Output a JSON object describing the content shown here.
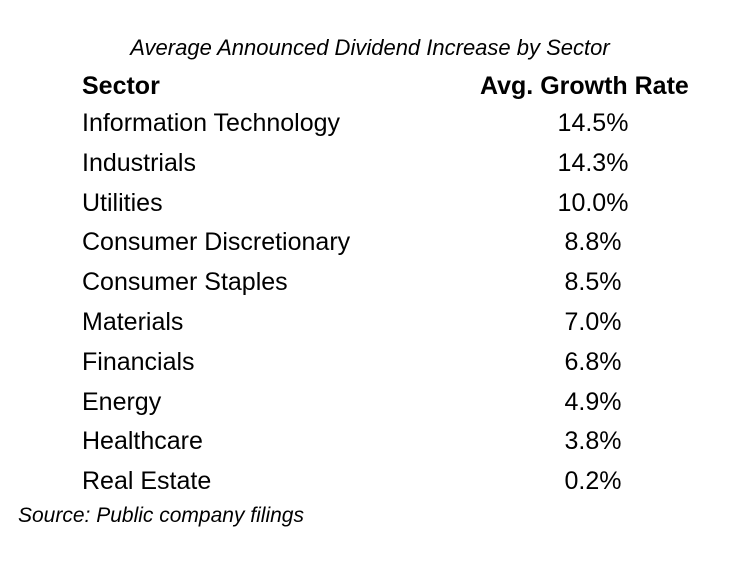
{
  "chart_data": {
    "type": "table",
    "title": "Average Announced Dividend Increase by Sector",
    "columns": [
      "Sector",
      "Avg. Growth Rate"
    ],
    "rows": [
      {
        "sector": "Information Technology",
        "rate": "14.5%"
      },
      {
        "sector": "Industrials",
        "rate": "14.3%"
      },
      {
        "sector": "Utilities",
        "rate": "10.0%"
      },
      {
        "sector": "Consumer Discretionary",
        "rate": "8.8%"
      },
      {
        "sector": "Consumer Staples",
        "rate": "8.5%"
      },
      {
        "sector": "Materials",
        "rate": "7.0%"
      },
      {
        "sector": "Financials",
        "rate": "6.8%"
      },
      {
        "sector": "Energy",
        "rate": "4.9%"
      },
      {
        "sector": "Healthcare",
        "rate": "3.8%"
      },
      {
        "sector": "Real Estate",
        "rate": "0.2%"
      }
    ],
    "source": "Source: Public company filings"
  }
}
